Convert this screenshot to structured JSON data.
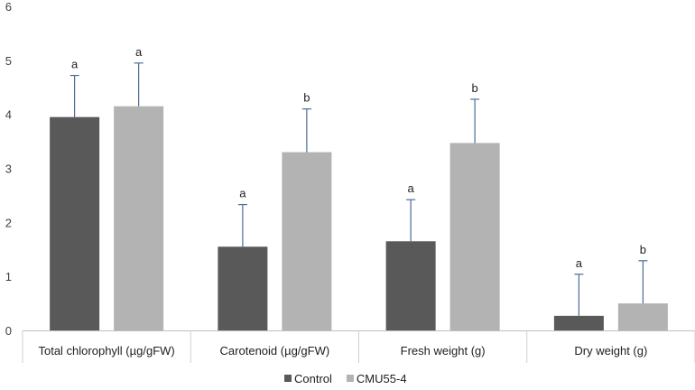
{
  "chart_data": {
    "type": "bar",
    "title": "",
    "xlabel": "",
    "ylabel": "",
    "ylim": [
      0,
      6
    ],
    "yticks": [
      0,
      1,
      2,
      3,
      4,
      5,
      6
    ],
    "grid": false,
    "legend_position": "bottom",
    "categories": [
      "Total chlorophyll (µg/gFW)",
      "Carotenoid (µg/gFW)",
      "Fresh weight (g)",
      "Dry weight (g)"
    ],
    "series": [
      {
        "name": "Control",
        "color": "#595959",
        "values": [
          3.95,
          1.55,
          1.65,
          0.27
        ],
        "error": [
          0.77,
          0.78,
          0.77,
          0.77
        ],
        "significance": [
          "a",
          "a",
          "a",
          "a"
        ]
      },
      {
        "name": "CMU55-4",
        "color": "#b3b3b3",
        "values": [
          4.15,
          3.3,
          3.47,
          0.5
        ],
        "error": [
          0.8,
          0.8,
          0.81,
          0.79
        ],
        "significance": [
          "a",
          "b",
          "b",
          "b"
        ]
      }
    ],
    "error_bar_color": "#4a6b96"
  }
}
